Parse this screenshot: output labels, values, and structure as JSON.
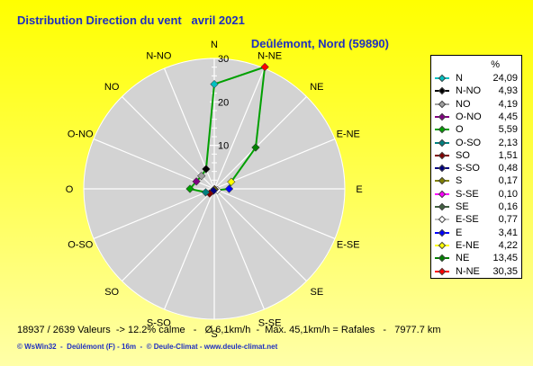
{
  "title": "Distribution Direction du vent   avril 2021",
  "subtitle": "Deûlémont, Nord (59890)",
  "stats": "18937 / 2639 Valeurs  -> 12.2% calme   -   Ø 6,1km/h  -  Max. 45,1km/h = Rafales   -   7977.7 km",
  "footer": "© WsWin32  -  Deûlémont (F) - 16m  -  © Deule-Climat - www.deule-climat.net",
  "colors": {
    "background_top": "#ffff00",
    "title_text": "#1f2fbf",
    "plot_fill": "#d3d3d3",
    "grid_line": "#ffffff",
    "data_line": "#00a000"
  },
  "chart_data": {
    "type": "radar",
    "title": "Distribution Direction du vent   avril 2021",
    "unit": "%",
    "rlim": [
      0,
      30
    ],
    "rticks": [
      10,
      20,
      30
    ],
    "grid": true,
    "legend_position": "right",
    "directions": [
      "N",
      "N-NE",
      "NE",
      "E-NE",
      "E",
      "E-SE",
      "SE",
      "S-SE",
      "S",
      "S-SO",
      "SO",
      "O-SO",
      "O",
      "O-NO",
      "NO",
      "N-NO"
    ],
    "values": [
      24.09,
      30.35,
      13.45,
      4.22,
      3.41,
      0.77,
      0.16,
      0.1,
      0.17,
      0.48,
      1.51,
      2.13,
      5.59,
      4.45,
      4.19,
      4.93
    ],
    "legend_header": "%",
    "legend": [
      {
        "label": "N",
        "value": "24,09",
        "color": "#00c0c0"
      },
      {
        "label": "N-NO",
        "value": "4,93",
        "color": "#000000"
      },
      {
        "label": "NO",
        "value": "4,19",
        "color": "#a0a0a0"
      },
      {
        "label": "O-NO",
        "value": "4,45",
        "color": "#800080"
      },
      {
        "label": "O",
        "value": "5,59",
        "color": "#00a000"
      },
      {
        "label": "O-SO",
        "value": "2,13",
        "color": "#008080"
      },
      {
        "label": "SO",
        "value": "1,51",
        "color": "#800000"
      },
      {
        "label": "S-SO",
        "value": "0,48",
        "color": "#000080"
      },
      {
        "label": "S",
        "value": "0,17",
        "color": "#808000"
      },
      {
        "label": "S-SE",
        "value": "0,10",
        "color": "#ff00ff"
      },
      {
        "label": "SE",
        "value": "0,16",
        "color": "#406040"
      },
      {
        "label": "E-SE",
        "value": "0,77",
        "color": "#ffffff"
      },
      {
        "label": "E",
        "value": "3,41",
        "color": "#0000ff"
      },
      {
        "label": "E-NE",
        "value": "4,22",
        "color": "#ffff00"
      },
      {
        "label": "NE",
        "value": "13,45",
        "color": "#008000"
      },
      {
        "label": "N-NE",
        "value": "30,35",
        "color": "#ff0000"
      }
    ]
  }
}
